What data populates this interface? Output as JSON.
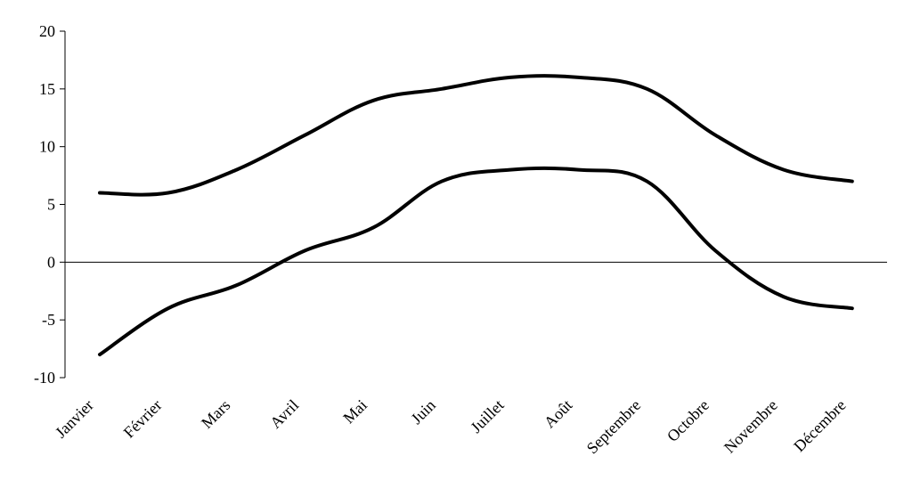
{
  "chart_data": {
    "type": "line",
    "categories": [
      "Janvier",
      "Février",
      "Mars",
      "Avril",
      "Mai",
      "Juin",
      "Juillet",
      "Août",
      "Septembre",
      "Octobre",
      "Novembre",
      "Décembre"
    ],
    "series": [
      {
        "values": [
          6,
          6,
          8,
          11,
          14,
          15,
          16,
          16,
          15,
          11,
          8,
          7
        ]
      },
      {
        "values": [
          -8,
          -4,
          -2,
          1,
          3,
          7,
          8,
          8,
          7,
          1,
          -3,
          -4
        ]
      }
    ],
    "ylim": [
      -10,
      20
    ],
    "yticks": [
      "-10",
      "-5",
      "0",
      "5",
      "10",
      "15",
      "20"
    ],
    "grid": false,
    "legend": "none",
    "line_color": "#000000"
  }
}
